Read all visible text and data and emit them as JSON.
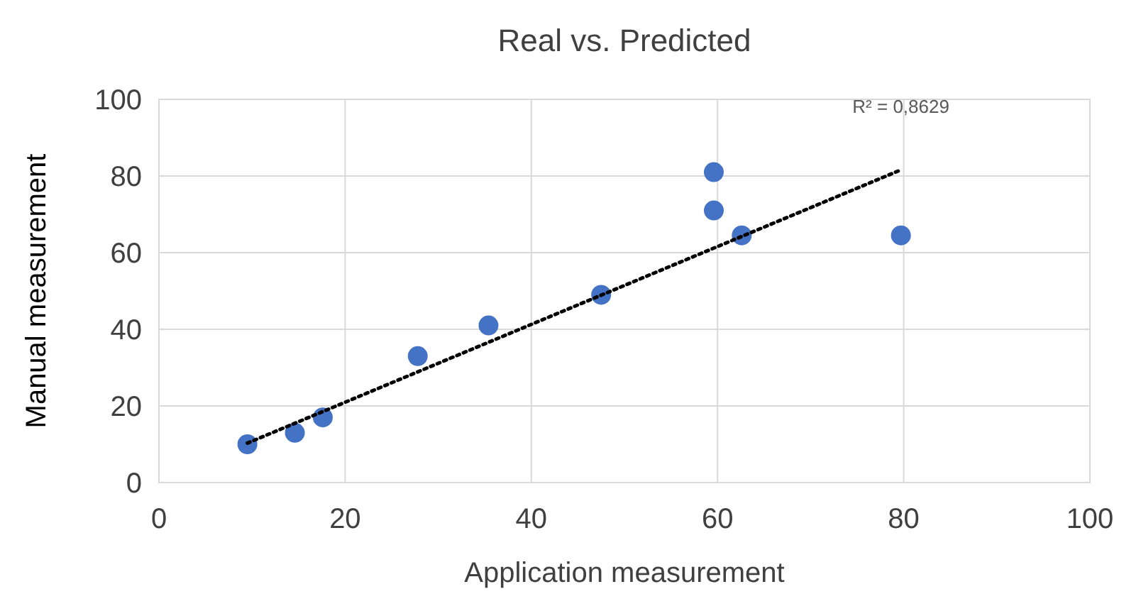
{
  "chart_data": {
    "type": "scatter",
    "title": "Real vs. Predicted",
    "xlabel": "Application measurement",
    "ylabel": "Manual measurement",
    "xlim": [
      0,
      100
    ],
    "xticks": [
      0,
      20,
      40,
      60,
      80,
      100
    ],
    "ylim": [
      0,
      100
    ],
    "yticks": [
      0,
      20,
      40,
      60,
      80,
      100
    ],
    "grid": true,
    "marker": "circle",
    "annotations": [
      {
        "text": "R² = 0,8629",
        "x": 79.7,
        "y": 81.6
      }
    ],
    "series": [
      {
        "color": "#4472c4",
        "x": [
          9.5,
          14.6,
          17.6,
          27.8,
          35.4,
          47.5,
          59.6,
          59.6,
          62.6,
          79.7
        ],
        "values": [
          10,
          13,
          17,
          33,
          41,
          49,
          71,
          81,
          64.5,
          64.5
        ]
      },
      {
        "type": "line",
        "color": "#000000",
        "line_style": "dotted",
        "marker": "none",
        "x": [
          9.5,
          79.7
        ],
        "values": [
          10.3,
          81.6
        ]
      }
    ]
  }
}
